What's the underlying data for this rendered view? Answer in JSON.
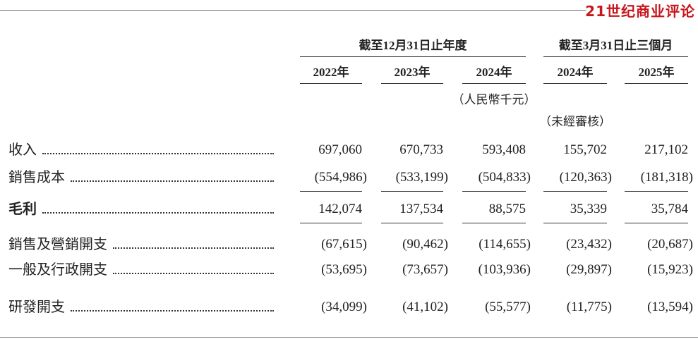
{
  "logo": "21世纪商业评论",
  "header": {
    "groups": [
      "截至12月31日止年度",
      "截至3月31日止三個月"
    ],
    "years": [
      "2022年",
      "2023年",
      "2024年",
      "2024年",
      "2025年"
    ],
    "currency_note": "（人民幣千元）",
    "unaudited_note": "（未經審核）"
  },
  "table": {
    "rows": [
      {
        "label": "收入",
        "values": [
          "697,060",
          "670,733",
          "593,408",
          "155,702",
          "217,102"
        ]
      },
      {
        "label": "銷售成本",
        "values": [
          "(554,986)",
          "(533,199)",
          "(504,833)",
          "(120,363)",
          "(181,318)"
        ]
      },
      {
        "label": "毛利",
        "values": [
          "142,074",
          "137,534",
          "88,575",
          "35,339",
          "35,784"
        ]
      },
      {
        "label": "銷售及營銷開支",
        "values": [
          "(67,615)",
          "(90,462)",
          "(114,655)",
          "(23,432)",
          "(20,687)"
        ]
      },
      {
        "label": "一般及行政開支",
        "values": [
          "(53,695)",
          "(73,657)",
          "(103,936)",
          "(29,897)",
          "(15,923)"
        ]
      },
      {
        "label": "研發開支",
        "values": [
          "(34,099)",
          "(41,102)",
          "(55,577)",
          "(11,775)",
          "(13,594)"
        ]
      }
    ]
  }
}
